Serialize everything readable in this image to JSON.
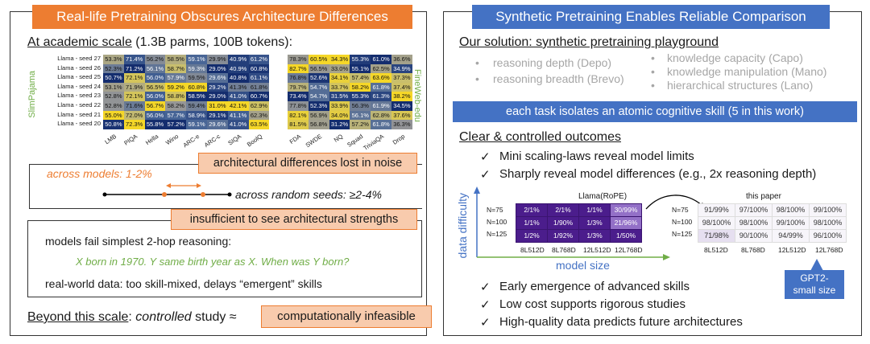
{
  "left": {
    "banner": "Real-life Pretraining Obscures Architecture Differences",
    "academic_heading": "At academic scale",
    "academic_rest": " (1.3B parms, 100B tokens):",
    "left_dataset": "SlimPajama",
    "right_dataset": "FineWeb-edu",
    "row_labels": [
      "Llama - seed 27",
      "Llama - seed 26",
      "Llama - seed 25",
      "Llama - seed 24",
      "Llama - seed 23",
      "Llama - seed 22",
      "Llama - seed 21",
      "Llama - seed 20"
    ],
    "left_cols": [
      "LMB",
      "PIQA",
      "Hella",
      "Wino",
      "ARC-e",
      "ARC-c",
      "SIQA",
      "BoolQ"
    ],
    "right_cols": [
      "FDA",
      "SWDE",
      "NQ",
      "Squad",
      "TriviaQA",
      "Drop"
    ],
    "left_table": [
      [
        "53.3%",
        "71.4%",
        "56.2%",
        "58.5%",
        "59.1%",
        "29.9%",
        "40.9%",
        "61.2%"
      ],
      [
        "52.3%",
        "71.2%",
        "56.1%",
        "58.7%",
        "59.3%",
        "29.0%",
        "40.9%",
        "60.8%"
      ],
      [
        "50.7%",
        "72.1%",
        "56.0%",
        "57.9%",
        "59.5%",
        "29.6%",
        "40.8%",
        "61.1%"
      ],
      [
        "53.1%",
        "71.9%",
        "56.5%",
        "59.2%",
        "60.8%",
        "29.2%",
        "41.3%",
        "61.8%"
      ],
      [
        "52.8%",
        "72.1%",
        "56.0%",
        "58.8%",
        "58.5%",
        "29.0%",
        "41.0%",
        "60.7%"
      ],
      [
        "52.8%",
        "71.6%",
        "56.7%",
        "58.2%",
        "59.4%",
        "31.0%",
        "42.1%",
        "62.9%"
      ],
      [
        "55.0%",
        "72.0%",
        "56.0%",
        "57.7%",
        "58.9%",
        "29.1%",
        "41.1%",
        "62.3%"
      ],
      [
        "50.8%",
        "72.3%",
        "55.8%",
        "57.2%",
        "59.1%",
        "29.6%",
        "41.0%",
        "63.5%"
      ]
    ],
    "right_table": [
      [
        "78.3%",
        "60.5%",
        "34.3%",
        "55.3%",
        "61.0%",
        "36.6%"
      ],
      [
        "82.7%",
        "56.5%",
        "33.0%",
        "55.1%",
        "62.5%",
        "34.9%"
      ],
      [
        "76.8%",
        "52.6%",
        "34.1%",
        "57.4%",
        "63.6%",
        "37.3%"
      ],
      [
        "79.7%",
        "54.7%",
        "33.7%",
        "58.2%",
        "61.8%",
        "37.4%"
      ],
      [
        "73.4%",
        "54.7%",
        "31.5%",
        "55.3%",
        "61.3%",
        "38.2%"
      ],
      [
        "77.8%",
        "52.3%",
        "33.9%",
        "56.3%",
        "61.9%",
        "34.5%"
      ],
      [
        "82.1%",
        "56.9%",
        "34.0%",
        "56.1%",
        "62.8%",
        "37.6%"
      ],
      [
        "81.5%",
        "56.8%",
        "31.2%",
        "57.2%",
        "61.8%",
        "36.3%"
      ]
    ],
    "callout1": "architectural differences lost in noise",
    "across_models": "across models: 1-2%",
    "across_seeds": "across random seeds: ≥2-4%",
    "callout2": "insufficient to see architectural strengths",
    "fail_text": "models fail simplest 2-hop reasoning:",
    "example_text": "X born in 1970. Y same birth year as X. When was Y born?",
    "realworld_text": "real-world data: too skill-mixed, delays “emergent” skills",
    "beyond_heading": "Beyond this scale",
    "beyond_colon": ": ",
    "controlled": "controlled",
    "study_approx": " study ≈",
    "callout3": "computationally infeasible"
  },
  "right": {
    "banner": "Synthetic Pretraining Enables Reliable Comparison",
    "solution_heading": "Our solution: synthetic pretraining playground",
    "bullets_left": [
      "reasoning depth (Depo)",
      "reasoning breadth (Brevo)"
    ],
    "bullets_right": [
      "knowledge capacity (Capo)",
      "knowledge manipulation (Mano)",
      "hierarchical structures (Lano)"
    ],
    "isolate_banner": "each task isolates an atomic cognitive skill (5 in this work)",
    "outcomes_heading": "Clear & controlled outcomes",
    "checks_top": [
      "Mini scaling-laws reveal model limits",
      "Sharply reveal model differences (e.g., 2x reasoning depth)"
    ],
    "y_axis": "data difficulty",
    "x_axis": "model size",
    "llama_title": "Llama(RoPE)",
    "paper_title": "this paper",
    "row_labels": [
      "N=75",
      "N=100",
      "N=125"
    ],
    "col_labels": [
      "8L512D",
      "8L768D",
      "12L512D",
      "12L768D"
    ],
    "llama_table": [
      [
        "2/1%",
        "2/1%",
        "1/1%",
        "30/99%"
      ],
      [
        "1/1%",
        "1/90%",
        "1/3%",
        "21/96%"
      ],
      [
        "1/2%",
        "1/92%",
        "1/3%",
        "1/50%"
      ]
    ],
    "paper_table": [
      [
        "91/99%",
        "97/100%",
        "98/100%",
        "99/100%"
      ],
      [
        "98/100%",
        "98/100%",
        "99/100%",
        "98/100%"
      ],
      [
        "71/98%",
        "90/100%",
        "94/99%",
        "96/100%"
      ]
    ],
    "gpt2_label": "GPT2-\nsmall size",
    "checks_bottom": [
      "Early emergence of advanced skills",
      "Low cost supports rigorous studies",
      "High-quality data predicts future architectures"
    ],
    "checkmark": "✓",
    "bullet_dot": "•"
  },
  "colors": {
    "orange": "#ed7d31",
    "blue": "#4472c4",
    "green": "#70ad47",
    "purple": "#7030a0",
    "peach": "#f8cbad"
  }
}
